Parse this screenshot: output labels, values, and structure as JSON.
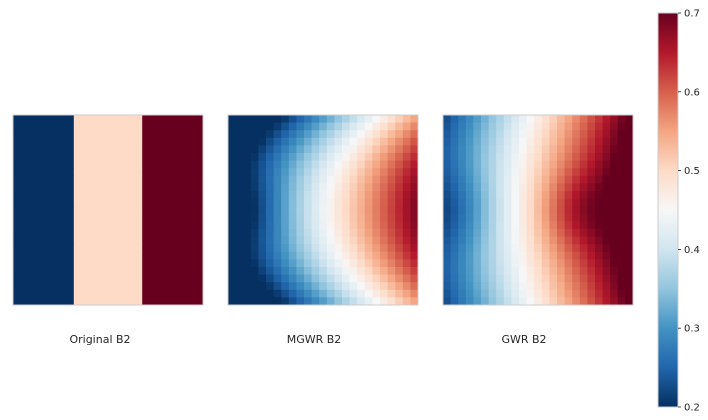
{
  "chart_data": {
    "type": "heatmap",
    "colormap": "RdBu_r",
    "grid_size": [
      25,
      25
    ],
    "colorbar": {
      "range": [
        0.2,
        0.7
      ],
      "ticks": [
        "0.2",
        "0.3",
        "0.4",
        "0.5",
        "0.6",
        "0.7"
      ]
    },
    "panels": [
      {
        "name": "Original B2",
        "title": "Original B2",
        "model": "bands",
        "bands": [
          {
            "from_col": 0,
            "to_col": 8,
            "value": 0.2
          },
          {
            "from_col": 8,
            "to_col": 17,
            "value": 0.5
          },
          {
            "from_col": 17,
            "to_col": 25,
            "value": 0.7
          }
        ]
      },
      {
        "name": "MGWR B2",
        "title": "MGWR B2",
        "model": "smooth",
        "x_range": [
          0.22,
          0.7
        ],
        "min_value": 0.2,
        "arc_mid": 0.47,
        "arc_edge": 0.6,
        "low_blob": {
          "center_col": 2,
          "center_row": 12,
          "depth": 0.06
        },
        "high_blob": {
          "center_col": 23,
          "center_row": 12,
          "depth": 0.0
        }
      },
      {
        "name": "GWR B2",
        "title": "GWR B2",
        "model": "smooth",
        "x_range": [
          0.24,
          0.72
        ],
        "min_value": 0.2,
        "arc_mid": 0.42,
        "arc_edge": 0.46,
        "low_blob": {
          "center_col": 1,
          "center_row": 12,
          "depth": 0.05
        },
        "high_blob": {
          "center_col": 17,
          "center_row": 12,
          "depth": 0.05
        }
      }
    ]
  }
}
